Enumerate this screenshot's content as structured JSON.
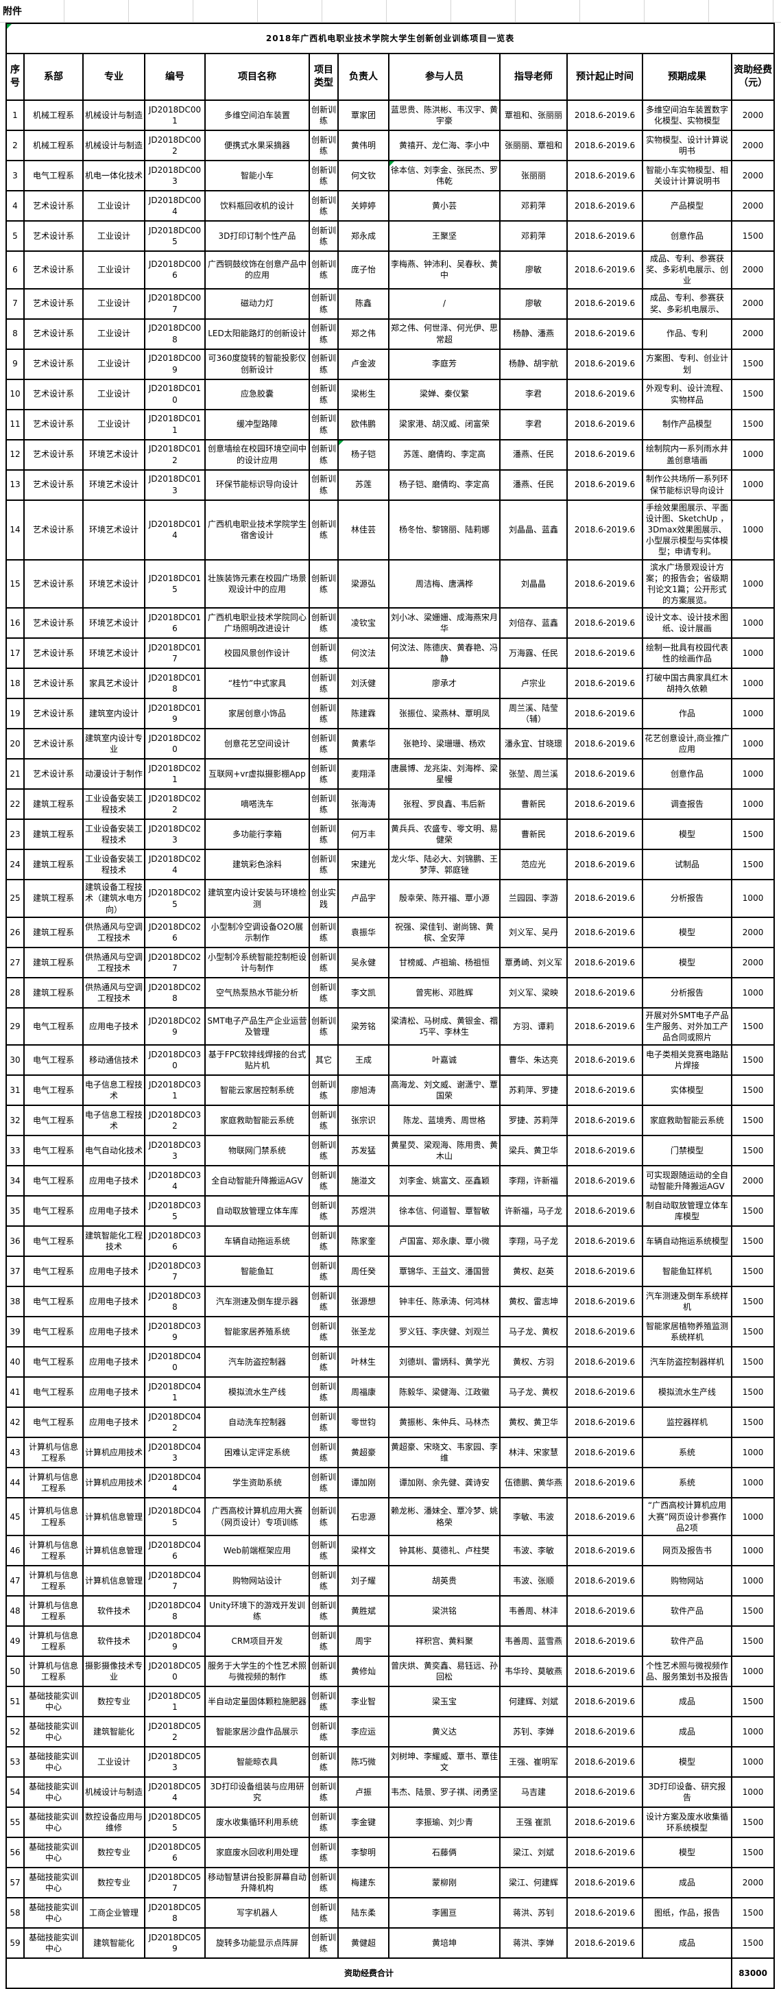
{
  "attachment_label": "附件",
  "title": "2018年广西机电职业技术学院大学生创新创业训练项目一览表",
  "columns": [
    "序号",
    "系部",
    "专业",
    "编号",
    "项目名称",
    "项目类型",
    "负责人",
    "参与人员",
    "指导老师",
    "预计起止时间",
    "预期成果",
    "资助经费（元）"
  ],
  "footer": {
    "label": "资助经费合计",
    "total": "83000"
  },
  "green_marker_cells": [
    [
      2,
      7
    ],
    [
      11,
      6
    ]
  ],
  "rows": [
    [
      "1",
      "机械工程系",
      "机械设计与制造",
      "JD2018DC001",
      "多维空间泊车装置",
      "创新训练",
      "覃家团",
      "蓝思贵、陈洪彬、韦汉宇、黄宇豪",
      "覃祖和、张丽丽",
      "2018.6-2019.6",
      "多维空间泊车装置数字化模型、实物模型",
      "2000"
    ],
    [
      "2",
      "机械工程系",
      "机械设计与制造",
      "JD2018DC002",
      "便携式水果采摘器",
      "创新训练",
      "黄伟明",
      "黄禧开、龙仁海、李小中",
      "张丽丽、覃祖和",
      "2018.6-2019.6",
      "实物模型、设计计算说明书",
      "2000"
    ],
    [
      "3",
      "电气工程系",
      "机电一体化技术",
      "JD2018DC003",
      "智能小车",
      "创新训练",
      "何文钦",
      "徐本信、刘李金、张民杰、罗伟乾",
      "张丽丽",
      "2018.6-2019.6",
      "智能小车实物模型、相关设计计算说明书",
      "2000"
    ],
    [
      "4",
      "艺术设计系",
      "工业设计",
      "JD2018DC004",
      "饮料瓶回收机的设计",
      "创新训练",
      "关婷婷",
      "黄小芸",
      "邓莉萍",
      "2018.6-2019.6",
      "产品模型",
      "2000"
    ],
    [
      "5",
      "艺术设计系",
      "工业设计",
      "JD2018DC005",
      "3D打印订制个性产品",
      "创新训练",
      "郑永成",
      "王聚坚",
      "邓莉萍",
      "2018.6-2019.6",
      "创意作品",
      "1500"
    ],
    [
      "6",
      "艺术设计系",
      "工业设计",
      "JD2018DC006",
      "广西铜鼓纹饰在创意产品中的应用",
      "创新训练",
      "庞子怡",
      "李梅燕、钟沛利、吴春秋、黄中",
      "廖敏",
      "2018.6-2019.6",
      "成品、专利、参赛获奖、多彩机电展示、创业",
      "2000"
    ],
    [
      "7",
      "艺术设计系",
      "工业设计",
      "JD2018DC007",
      "磁动力灯",
      "创新训练",
      "陈鑫",
      "/",
      "廖敏",
      "2018.6-2019.6",
      "成品、专利、参赛获奖、多彩机电展示、",
      "2000"
    ],
    [
      "8",
      "艺术设计系",
      "工业设计",
      "JD2018DC008",
      "LED太阳能路灯的创新设计",
      "创新训练",
      "郑之伟",
      "郑之伟、何世泽、何光伊、思常超",
      "杨静、潘燕",
      "2018.6-2019.6",
      "作品、专利",
      "2000"
    ],
    [
      "9",
      "艺术设计系",
      "工业设计",
      "JD2018DC009",
      "可360度旋转的智能投影仪创新设计",
      "创新训练",
      "卢金波",
      "李庭芳",
      "杨静、胡宇航",
      "2018.6-2019.6",
      "方案图、专利、创业计划",
      "1500"
    ],
    [
      "10",
      "艺术设计系",
      "工业设计",
      "JD2018DC010",
      "应急胶囊",
      "创新训练",
      "梁彬生",
      "梁婵、秦仪繁",
      "李君",
      "2018.6-2019.6",
      "外观专利、设计流程、实物样品",
      "1500"
    ],
    [
      "11",
      "艺术设计系",
      "工业设计",
      "JD2018DC011",
      "缓冲型路障",
      "创新训练",
      "欧伟鹏",
      "梁家港、胡汉威、闭富荣",
      "李君",
      "2018.6-2019.6",
      "制作产品模型",
      "1500"
    ],
    [
      "12",
      "艺术设计系",
      "环境艺术设计",
      "JD2018DC012",
      "创意墙绘在校园环境空间中的设计应用",
      "创新训练",
      "杨子铠",
      "苏莲、磨倩昀、李定高",
      "潘燕、任民",
      "2018.6-2019.6",
      "绘制院内一系列雨水井盖创意墙画",
      "1000"
    ],
    [
      "13",
      "艺术设计系",
      "环境艺术设计",
      "JD2018DC013",
      "环保节能标识导向设计",
      "创新训练",
      "苏莲",
      "杨子铠、磨倩昀、李定高",
      "潘燕、任民",
      "2018.6-2019.6",
      "制作公共场所一系列环保节能标识导向设计",
      "1000"
    ],
    [
      "14",
      "艺术设计系",
      "环境艺术设计",
      "JD2018DC014",
      "广西机电职业技术学院学生宿舍设计",
      "创新训练",
      "林佳芸",
      "杨冬怡、黎锦丽、陆莉娜",
      "刘晶晶、蓝鑫",
      "2018.6-2019.6",
      "手绘效果图展示、平面设计图、SketchUp ，3Dmax效果图展示、小型展示模型与实体模型；申请专利。",
      "1000"
    ],
    [
      "15",
      "艺术设计系",
      "环境艺术设计",
      "JD2018DC015",
      "壮族装饰元素在校园广场景观设计中的应用",
      "创新训练",
      "梁源弘",
      "周洁梅、唐满桦",
      "刘晶晶",
      "2018.6-2019.6",
      "滨水广场景观设计方案；的报告会；省级期刊论文1篇；公开形式的方案展览。",
      "1000"
    ],
    [
      "16",
      "艺术设计系",
      "环境艺术设计",
      "JD2018DC016",
      "广西机电职业技术学院同心广场照明改进设计",
      "创新训练",
      "凌钦宝",
      "刘小冰、梁姗姗、成海燕宋月华",
      "刘倍存、蓝鑫",
      "2018.6-2019.6",
      "设计文本、设计技术图纸、设计展画",
      "1000"
    ],
    [
      "17",
      "艺术设计系",
      "环境艺术设计",
      "JD2018DC017",
      "校园风景创作设计",
      "创新训练",
      "何汶法",
      "何汶法、陈德庆、黄春艳、冯静",
      "万海露、任民",
      "2018.6-2019.6",
      "绘制一批具有校园代表性的绘画作品",
      "1000"
    ],
    [
      "18",
      "艺术设计系",
      "家具艺术设计",
      "JD2018DC018",
      "“桂竹”中式家具",
      "创新训练",
      "刘沃健",
      "廖承才",
      "卢宗业",
      "2018.6-2019.6",
      "打破中国古典家具红木胡持久依赖",
      "1000"
    ],
    [
      "19",
      "艺术设计系",
      "建筑室内设计",
      "JD2018DC019",
      "家居创意小饰品",
      "创新训练",
      "陈建霖",
      "张振位、梁燕林、覃明凤",
      "周兰溪、陆莹（辅）",
      "2018.6-2019.6",
      "作品",
      "1000"
    ],
    [
      "20",
      "艺术设计系",
      "建筑室内设计专业",
      "JD2018DC020",
      "创意花艺空间设计",
      "创新训练",
      "黄素华",
      "张艳玲、梁珊珊、杨欢",
      "潘永宜、甘晓璟",
      "2018.6-2019.6",
      "花艺创意设计,商业推广应用",
      "1000"
    ],
    [
      "21",
      "艺术设计系",
      "动漫设计于制作",
      "JD2018DC021",
      "互联网+vr虚拟摄影棚App",
      "创新训练",
      "麦翔泽",
      "唐晨博、龙兆柒、刘海桦、梁星幔",
      "张堃、周兰溪",
      "2018.6-2019.6",
      "创意作品",
      "1000"
    ],
    [
      "22",
      "建筑工程系",
      "工业设备安装工程技术",
      "JD2018DC022",
      "嘀嗒洗车",
      "创新训练",
      "张海涛",
      "张程、罗良鑫、韦后新",
      "曹新民",
      "2018.6-2019.6",
      "调查报告",
      "1000"
    ],
    [
      "23",
      "建筑工程系",
      "工业设备安装工程技术",
      "JD2018DC023",
      "多功能行李箱",
      "创新训练",
      "何万丰",
      "黄兵兵、农盛专、零文明、易健荣",
      "曹新民",
      "2018.6-2019.6",
      "模型",
      "1500"
    ],
    [
      "24",
      "建筑工程系",
      "工业设备安装工程技术",
      "JD2018DC024",
      "建筑彩色涂料",
      "创新训练",
      "宋建光",
      "龙火华、陆必大、刘锦鹏、王梦萍、郭庭锉",
      "范应光",
      "2018.6-2019.6",
      "试制品",
      "1500"
    ],
    [
      "25",
      "建筑工程系",
      "建筑设备工程技术（建筑水电方向）",
      "JD2018DC025",
      "建筑室内设计安装与环境检测",
      "创业实践",
      "卢品宇",
      "殷幸荣、陈开福、覃小源",
      "兰园园、李游",
      "2018.6-2019.6",
      "分析报告",
      "1000"
    ],
    [
      "26",
      "建筑工程系",
      "供热通风与空调工程技术",
      "JD2018DC026",
      "小型制冷空调设备O2O展示制作",
      "创新训练",
      "袁振华",
      "祝强、梁佳钊、谢尚锦、黄槟、全安萍",
      "刘义军、吴丹",
      "2018.6-2019.6",
      "模型",
      "2000"
    ],
    [
      "27",
      "建筑工程系",
      "供热通风与空调工程技术",
      "JD2018DC027",
      "小型制冷系统智能控制柜设计与制作",
      "创新训练",
      "吴永健",
      "甘榜威、卢祖瑜、杨祖恒",
      "覃勇崎、刘义军",
      "2018.6-2019.6",
      "模型",
      "2000"
    ],
    [
      "28",
      "建筑工程系",
      "供热通风与空调工程技术",
      "JD2018DC028",
      "空气热泵热水节能分析",
      "创新训练",
      "李文凯",
      "曾宪彬、邓胜辉",
      "刘义军、梁映",
      "2018.6-2019.6",
      "分析报告",
      "1000"
    ],
    [
      "29",
      "电气工程系",
      "应用电子技术",
      "JD2018DC029",
      "SMT电子产品生产企业运营及管理",
      "创新训练",
      "梁芳铭",
      "梁清松、马树成、黄银金、禤巧平、李林生",
      "方羽、谭莉",
      "2018.6-2019.6",
      "开展对外SMT电子产品生产服务、对外加工产品合同或照片",
      "1500"
    ],
    [
      "30",
      "电气工程系",
      "移动通信技术",
      "JD2018DC030",
      "基于FPC软排线焊接的台式贴片机",
      "其它",
      "王成",
      "叶嘉诚",
      "曹华、朱达亮",
      "2018.6-2019.6",
      "电子类相关竞赛电路贴片焊接",
      "1500"
    ],
    [
      "31",
      "电气工程系",
      "电子信息工程技术",
      "JD2018DC031",
      "智能云家居控制系统",
      "创新训练",
      "廖旭涛",
      "高海龙、刘文威、谢潇宁、覃国荣",
      "苏莉萍、罗捷",
      "2018.6-2019.6",
      "实体模型",
      "1500"
    ],
    [
      "32",
      "电气工程系",
      "电子信息工程技术",
      "JD2018DC032",
      "家庭救助智能云系统",
      "创新训练",
      "张宗识",
      "陈龙、蓝境秀、周世格",
      "罗捷、苏莉萍",
      "2018.6-2019.6",
      "家庭救助智能云系统",
      "1500"
    ],
    [
      "33",
      "电气工程系",
      "电气自动化技术",
      "JD2018DC033",
      "物联网门禁系统",
      "创新训练",
      "苏发猛",
      "黄星荧、梁观海、陈用贵、黄木山",
      "梁兵、黄卫华",
      "2018.6-2019.6",
      "门禁模型",
      "1500"
    ],
    [
      "34",
      "电气工程系",
      "应用电子技术",
      "JD2018DC034",
      "全自动智能升降搬运AGV",
      "创新训练",
      "施湴文",
      "刘李金、姚富文、巫鑫颖",
      "李翔，许新福",
      "2018.6-2019.6",
      "可实现跟随运动的全自动智能升降搬运AGV",
      "2000"
    ],
    [
      "35",
      "电气工程系",
      "应用电子技术",
      "JD2018DC035",
      "自动取放管理立体车库",
      "创新训练",
      "苏煜洪",
      "徐本信、何道智、覃智敏",
      "许新福，马子龙",
      "2018.6-2019.6",
      "制自动取放管理立体车库模型",
      "1500"
    ],
    [
      "36",
      "电气工程系",
      "建筑智能化工程技术",
      "JD2018DC036",
      "车辆自动拖运系统",
      "创新训练",
      "陈家奎",
      "卢国富、郑永康、覃小微",
      "李翔，马子龙",
      "2018.6-2019.6",
      "车辆自动拖运系统模型",
      "1500"
    ],
    [
      "37",
      "电气工程系",
      "应用电子技术",
      "JD2018DC037",
      "智能鱼缸",
      "创新训练",
      "周任癸",
      "覃锦华、王益文、潘国营",
      "黄权、赵英",
      "2018.6-2019.6",
      "智能鱼缸样机",
      "1500"
    ],
    [
      "38",
      "电气工程系",
      "应用电子技术",
      "JD2018DC038",
      "汽车测速及倒车提示器",
      "创新训练",
      "张源想",
      "钟丰任、陈承涛、何鸿林",
      "黄权、雷志坤",
      "2018.6-2019.6",
      "汽车测速及倒车系统样机",
      "1500"
    ],
    [
      "39",
      "电气工程系",
      "应用电子技术",
      "JD2018DC039",
      "智能家居养殖系统",
      "创新训练",
      "张圣龙",
      "罗义钰、李庆健、刘观兰",
      "马子龙、黄权",
      "2018.6-2019.6",
      "智能家居植物养殖监测系统样机",
      "1500"
    ],
    [
      "40",
      "电气工程系",
      "应用电子技术",
      "JD2018DC040",
      "汽车防盗控制器",
      "创新训练",
      "叶林生",
      "刘德圳、雷炳科、黄学光",
      "黄权、方羽",
      "2018.6-2019.6",
      "汽车防盗控制器样机",
      "1500"
    ],
    [
      "41",
      "电气工程系",
      "应用电子技术",
      "JD2018DC041",
      "模拟流水生产线",
      "创新训练",
      "周福康",
      "陈毅华、梁健海、江政徽",
      "马子龙、黄权",
      "2018.6-2019.6",
      "模拟流水生产线",
      "1500"
    ],
    [
      "42",
      "电气工程系",
      "应用电子技术",
      "JD2018DC042",
      "自动洗车控制器",
      "创新训练",
      "零世钧",
      "黄振彬、朱仲兵、马林杰",
      "黄权、黄卫华",
      "2018.6-2019.6",
      "监控器样机",
      "1500"
    ],
    [
      "43",
      "计算机与信息工程系",
      "计算机应用技术",
      "JD2018DC043",
      "困难认定评定系统",
      "创新训练",
      "黄超豪",
      "黄超豪、宋晓文、韦家园、李维",
      "林沣、宋家慧",
      "2018.6-2019.6",
      "系统",
      "1000"
    ],
    [
      "44",
      "计算机与信息工程系",
      "计算机应用技术",
      "JD2018DC044",
      "学生资助系统",
      "创新训练",
      "谭加刚",
      "谭加刚、余先健、龚诗安",
      "伍德鹏、黄华燕",
      "2018.6-2019.6",
      "系统",
      "1000"
    ],
    [
      "45",
      "计算机与信息工程系",
      "计算机信息管理",
      "JD2018DC045",
      "广西高校计算机应用大赛（网页设计）专项训练",
      "创新训练",
      "石忠源",
      "赖龙彬、潘妹全、覃冷梦、姚格荣",
      "李敏、韦波",
      "2018.6-2019.6",
      "“广西高校计算机应用大赛”网页设计参赛作品2项",
      "1000"
    ],
    [
      "46",
      "计算机与信息工程系",
      "计算机信息管理",
      "JD2018DC046",
      "Web前端框架应用",
      "创新训练",
      "梁样文",
      "钟其彬、莫德礼、卢柱樊",
      "韦波、李敏",
      "2018.6-2019.6",
      "网页及报告书",
      "1000"
    ],
    [
      "47",
      "计算机与信息工程系",
      "计算机信息管理",
      "JD2018DC047",
      "购物网站设计",
      "创新训练",
      "刘子耀",
      "胡英贵",
      "韦波、张顺",
      "2018.6-2019.6",
      "购物网站",
      "1000"
    ],
    [
      "48",
      "计算机与信息工程系",
      "软件技术",
      "JD2018DC048",
      "Unity环境下的游戏开发训练",
      "创新训练",
      "黄胜斌",
      "梁洪铭",
      "韦善周、林沣",
      "2018.6-2019.6",
      "软件产品",
      "1500"
    ],
    [
      "49",
      "计算机与信息工程系",
      "软件技术",
      "JD2018DC049",
      "CRM项目开发",
      "创新训练",
      "周宇",
      "祥积宫、黄料聚",
      "韦善周、蓝雪燕",
      "2018.6-2019.6",
      "软件产品",
      "1500"
    ],
    [
      "50",
      "计算机与信息工程系",
      "摄影摄像技术专业",
      "JD2018DC050",
      "服务于大学生的个性艺术照与微视频的制作",
      "创新训练",
      "黄修灿",
      "曾庆烘、黄奕鑫、易钰远、孙回松",
      "韦华玲、莫敏燕",
      "2018.6-2019.6",
      "个性艺术照与微视频作品、服务策划书及报告",
      "1000"
    ],
    [
      "51",
      "基础技能实训中心",
      "数控专业",
      "JD2018DC051",
      "半自动定量固体颗粒施肥器",
      "创新训练",
      "李业智",
      "梁玉宝",
      "何建辉、刘斌",
      "2018.6-2019.6",
      "成品",
      "1500"
    ],
    [
      "52",
      "基础技能实训中心",
      "建筑智能化",
      "JD2018DC052",
      "智能家居沙盘作品展示",
      "创新训练",
      "李应运",
      "黄义达",
      "苏钊、李婵",
      "2018.6-2019.6",
      "成品",
      "1000"
    ],
    [
      "53",
      "基础技能实训中心",
      "工业设计",
      "JD2018DC053",
      "智能晾衣具",
      "创新训练",
      "陈巧微",
      "刘树坤、李耀威、覃书、覃佳文",
      "王强、崔明军",
      "2018.6-2019.6",
      "模型",
      "1000"
    ],
    [
      "54",
      "基础技能实训中心",
      "机械设计与制造",
      "JD2018DC054",
      "3D打印设备组装与应用研究",
      "创新训练",
      "卢振",
      "韦杰、陆景、罗子祺、闭勇坚",
      "马吉建",
      "2018.6-2019.6",
      "3D打印设备、研究报告",
      "1000"
    ],
    [
      "55",
      "基础技能实训中心",
      "数控设备应用与维修",
      "JD2018DC055",
      "废水收集循环利用系统",
      "创新训练",
      "李金键",
      "李振瑜、刘少青",
      "王强 崔凯",
      "2018.6-2019.6",
      "设计方案及废水收集循环系统模型",
      "1500"
    ],
    [
      "56",
      "基础技能实训中心",
      "数控专业",
      "JD2018DC056",
      "家庭废水回收利用处理",
      "创新训练",
      "李黎明",
      "石藤俩",
      "梁江、刘斌",
      "2018.6-2019.6",
      "模型",
      "1500"
    ],
    [
      "57",
      "基础技能实训中心",
      "数控专业",
      "JD2018DC057",
      "移动智慧讲台投影屏幕自动升降机构",
      "创新训练",
      "梅建东",
      "蒙柳刚",
      "梁江、何建辉",
      "2018.6-2019.6",
      "成品",
      "2000"
    ],
    [
      "58",
      "基础技能实训中心",
      "工商企业管理",
      "JD2018DC058",
      "写字机器人",
      "创新训练",
      "陆东柔",
      "李圃亘",
      "蒋洪、苏钊",
      "2018.6-2019.6",
      "图纸，作品，报告",
      "1500"
    ],
    [
      "59",
      "基础技能实训中心",
      "建筑智能化",
      "JD2018DC059",
      "旋转多功能显示点阵屏",
      "创新训练",
      "黄健超",
      "黄培坤",
      "蒋洪、李婵",
      "2018.6-2019.6",
      "成品",
      "1500"
    ]
  ]
}
